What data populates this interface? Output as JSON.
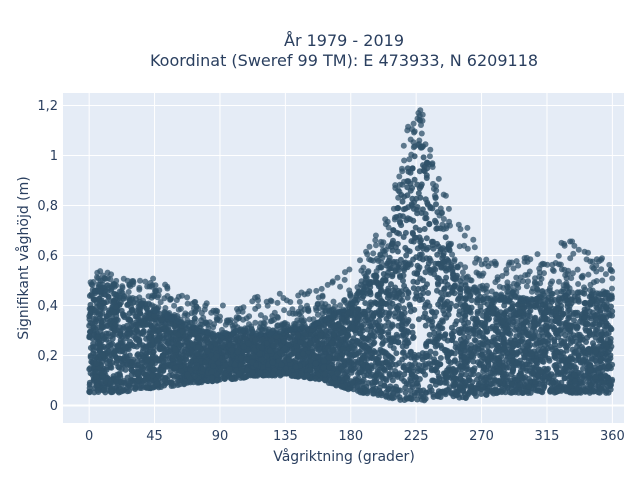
{
  "chart_data": {
    "type": "scatter",
    "title_lines": [
      "År 1979 - 2019",
      "Koordinat (Sweref 99 TM): E 473933, N 6209118"
    ],
    "xlabel": "Vågriktning (grader)",
    "ylabel": "Signifikant våghöjd (m)",
    "x_range": [
      -18,
      368
    ],
    "y_range": [
      -0.07,
      1.25
    ],
    "x_ticks": [
      0,
      45,
      90,
      135,
      180,
      225,
      270,
      315,
      360
    ],
    "x_tick_labels": [
      "0",
      "45",
      "90",
      "135",
      "180",
      "225",
      "270",
      "315",
      "360"
    ],
    "y_ticks": [
      0,
      0.2,
      0.4,
      0.6,
      0.8,
      1.0,
      1.2
    ],
    "y_tick_labels": [
      "0",
      "0,2",
      "0,4",
      "0,6",
      "0,8",
      "1",
      "1,2"
    ],
    "grid": true,
    "marker_color": "#2f5169",
    "background_color": "#e5ecf6",
    "envelope": {
      "x": [
        0,
        10,
        20,
        30,
        45,
        60,
        75,
        90,
        105,
        120,
        135,
        150,
        165,
        180,
        195,
        205,
        215,
        220,
        225,
        230,
        235,
        240,
        250,
        260,
        270,
        285,
        300,
        315,
        330,
        345,
        360
      ],
      "y_low": [
        0.05,
        0.05,
        0.05,
        0.06,
        0.07,
        0.08,
        0.09,
        0.1,
        0.11,
        0.12,
        0.12,
        0.11,
        0.09,
        0.06,
        0.04,
        0.03,
        0.02,
        0.02,
        0.02,
        0.02,
        0.02,
        0.03,
        0.03,
        0.03,
        0.04,
        0.05,
        0.05,
        0.05,
        0.05,
        0.05,
        0.05
      ],
      "y_high": [
        0.45,
        0.46,
        0.44,
        0.4,
        0.38,
        0.34,
        0.3,
        0.28,
        0.3,
        0.28,
        0.3,
        0.31,
        0.35,
        0.4,
        0.5,
        0.62,
        0.85,
        0.98,
        1.05,
        1.02,
        0.92,
        0.78,
        0.58,
        0.48,
        0.43,
        0.42,
        0.42,
        0.44,
        0.45,
        0.45,
        0.44
      ],
      "y_outlier": [
        0.55,
        0.54,
        0.52,
        0.5,
        0.52,
        0.45,
        0.42,
        0.4,
        0.42,
        0.44,
        0.45,
        0.46,
        0.5,
        0.55,
        0.65,
        0.8,
        1.05,
        1.15,
        1.2,
        1.2,
        1.1,
        0.95,
        0.8,
        0.72,
        0.62,
        0.6,
        0.6,
        0.64,
        0.66,
        0.65,
        0.55
      ]
    }
  }
}
